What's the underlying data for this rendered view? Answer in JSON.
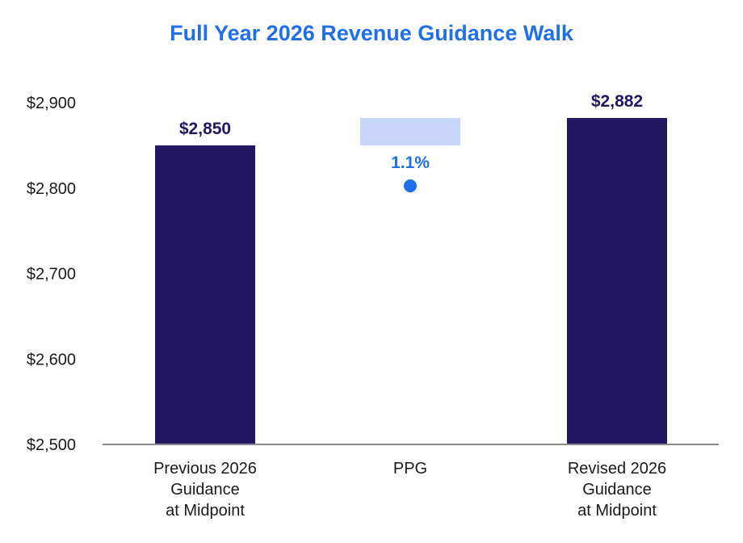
{
  "chart_data": {
    "type": "bar",
    "chart_style": "waterfall",
    "title": "Full Year 2026 Revenue Guidance Walk",
    "categories": [
      [
        "Previous 2026",
        "Guidance",
        "at Midpoint"
      ],
      [
        "PPG"
      ],
      [
        "Revised 2026",
        "Guidance",
        "at Midpoint"
      ]
    ],
    "bars": [
      {
        "kind": "total",
        "start": 2500,
        "end": 2850,
        "label": "$2,850"
      },
      {
        "kind": "increase",
        "start": 2850,
        "end": 2882,
        "label": "1.1%"
      },
      {
        "kind": "total",
        "start": 2500,
        "end": 2882,
        "label": "$2,882"
      }
    ],
    "yticks": [
      {
        "value": 2500,
        "label": "$2,500"
      },
      {
        "value": 2600,
        "label": "$2,600"
      },
      {
        "value": 2700,
        "label": "$2,700"
      },
      {
        "value": 2800,
        "label": "$2,800"
      },
      {
        "value": 2900,
        "label": "$2,900"
      }
    ],
    "ylim": [
      2500,
      2900
    ],
    "grid": false,
    "legend": "none",
    "colors": {
      "title": "#1f6fe8",
      "total_bar": "#241762",
      "increase_bar": "#c8d5fb",
      "value_label": "#241762",
      "pct_label": "#1f6fe8",
      "marker": "#1f6fe8",
      "axis": "#8a8a8a"
    }
  }
}
